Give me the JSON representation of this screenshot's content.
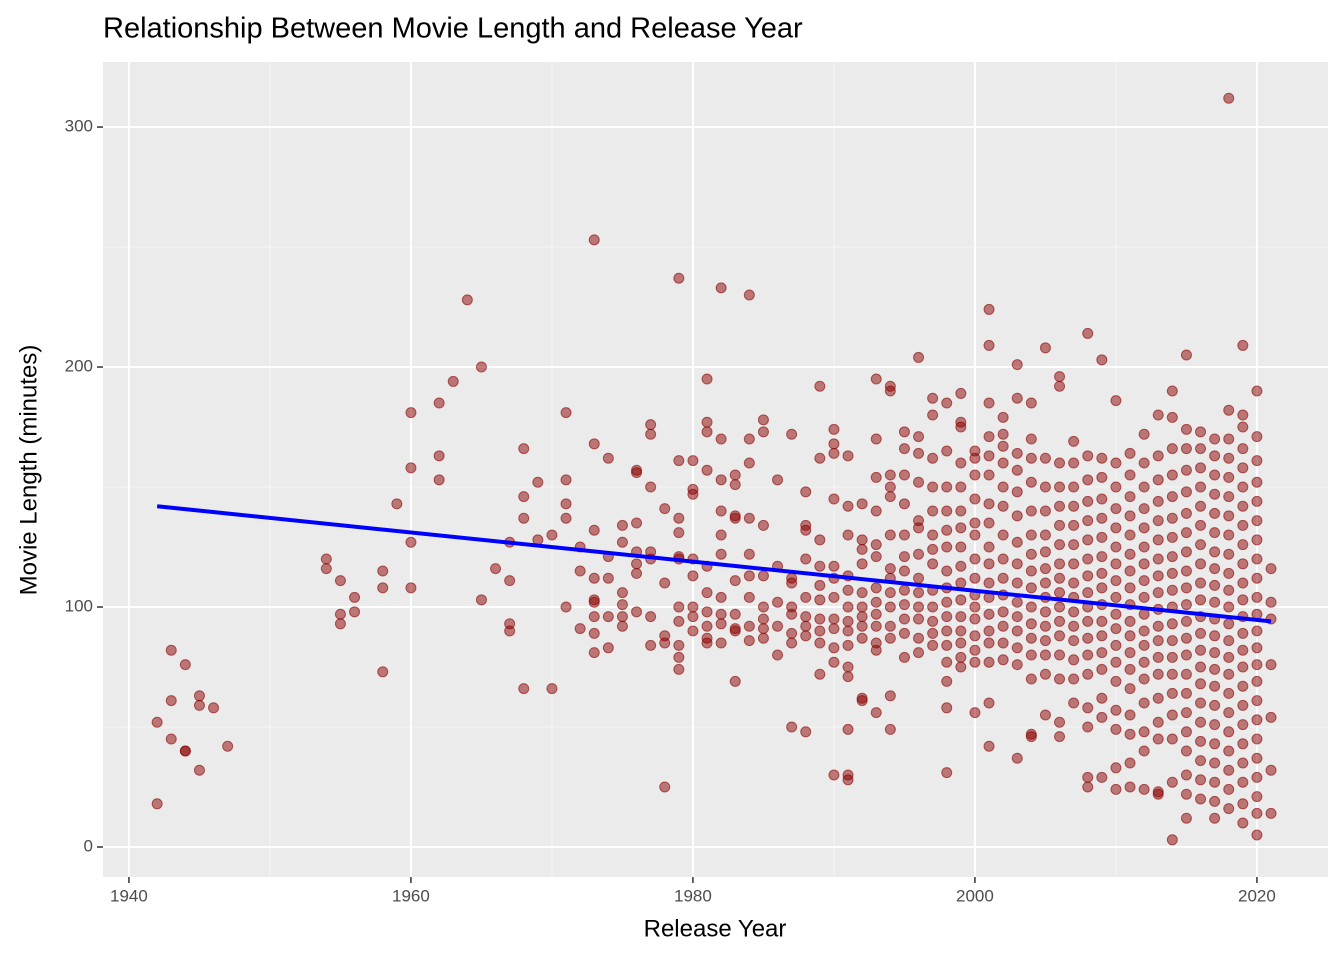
{
  "chart_data": {
    "type": "scatter",
    "title": "Relationship Between Movie Length and Release Year",
    "x_label": "Release Year",
    "y_label": "Movie Length (minutes)",
    "xlim": [
      1938.16,
      2025.04
    ],
    "ylim": [
      -12.5,
      327.1
    ],
    "xticks": [
      1940,
      1960,
      1980,
      2000,
      2020
    ],
    "yticks": [
      0,
      100,
      200,
      300
    ],
    "grid": true,
    "color": "#8b0000",
    "x": [
      1942,
      1942,
      1943,
      1943,
      1943,
      1944,
      1944,
      1944,
      1945,
      1945,
      1945,
      1946,
      1947,
      1954,
      1954,
      1955,
      1955,
      1955,
      1956,
      1956,
      1958,
      1958,
      1958,
      1959,
      1960,
      1960,
      1960,
      1960,
      1962,
      1962,
      1962,
      1963,
      1964,
      1965,
      1965,
      1966,
      1967,
      1967,
      1967,
      1967,
      1968,
      1968,
      1968,
      1968,
      1969,
      1969,
      1970,
      1970,
      1971,
      1971,
      1971,
      1971,
      1971,
      1972,
      1972,
      1972,
      1973,
      1973,
      1973,
      1973,
      1973,
      1973,
      1973,
      1973,
      1973,
      1974,
      1974,
      1974,
      1974,
      1974,
      1975,
      1975,
      1975,
      1975,
      1975,
      1975,
      1976,
      1976,
      1976,
      1976,
      1976,
      1976,
      1976,
      1977,
      1977,
      1977,
      1977,
      1977,
      1977,
      1977,
      1978,
      1978,
      1978,
      1978,
      1978,
      1979,
      1979,
      1979,
      1979,
      1979,
      1979,
      1979,
      1979,
      1979,
      1979,
      1979,
      1980,
      1980,
      1980,
      1980,
      1980,
      1980,
      1980,
      1980,
      1981,
      1981,
      1981,
      1981,
      1981,
      1981,
      1981,
      1981,
      1981,
      1981,
      1982,
      1982,
      1982,
      1982,
      1982,
      1982,
      1982,
      1982,
      1982,
      1982,
      1983,
      1983,
      1983,
      1983,
      1983,
      1983,
      1983,
      1983,
      1983,
      1984,
      1984,
      1984,
      1984,
      1984,
      1984,
      1984,
      1984,
      1984,
      1985,
      1985,
      1985,
      1985,
      1985,
      1985,
      1985,
      1985,
      1986,
      1986,
      1986,
      1986,
      1986,
      1987,
      1987,
      1987,
      1987,
      1987,
      1987,
      1987,
      1987,
      1988,
      1988,
      1988,
      1988,
      1988,
      1988,
      1988,
      1988,
      1988,
      1989,
      1989,
      1989,
      1989,
      1989,
      1989,
      1989,
      1989,
      1989,
      1989,
      1990,
      1990,
      1990,
      1990,
      1990,
      1990,
      1990,
      1990,
      1990,
      1990,
      1990,
      1990,
      1991,
      1991,
      1991,
      1991,
      1991,
      1991,
      1991,
      1991,
      1991,
      1991,
      1991,
      1991,
      1991,
      1991,
      1992,
      1992,
      1992,
      1992,
      1992,
      1992,
      1992,
      1992,
      1992,
      1992,
      1992,
      1993,
      1993,
      1993,
      1993,
      1993,
      1993,
      1993,
      1993,
      1993,
      1993,
      1993,
      1993,
      1993,
      1994,
      1994,
      1994,
      1994,
      1994,
      1994,
      1994,
      1994,
      1994,
      1994,
      1994,
      1994,
      1994,
      1994,
      1995,
      1995,
      1995,
      1995,
      1995,
      1995,
      1995,
      1995,
      1995,
      1995,
      1995,
      1995,
      1996,
      1996,
      1996,
      1996,
      1996,
      1996,
      1996,
      1996,
      1996,
      1996,
      1996,
      1996,
      1996,
      1997,
      1997,
      1997,
      1997,
      1997,
      1997,
      1997,
      1997,
      1997,
      1997,
      1997,
      1997,
      1997,
      1998,
      1998,
      1998,
      1998,
      1998,
      1998,
      1998,
      1998,
      1998,
      1998,
      1998,
      1998,
      1998,
      1998,
      1998,
      1998,
      1999,
      1999,
      1999,
      1999,
      1999,
      1999,
      1999,
      1999,
      1999,
      1999,
      1999,
      1999,
      1999,
      1999,
      1999,
      1999,
      2000,
      2000,
      2000,
      2000,
      2000,
      2000,
      2000,
      2000,
      2000,
      2000,
      2000,
      2000,
      2000,
      2000,
      2000,
      2001,
      2001,
      2001,
      2001,
      2001,
      2001,
      2001,
      2001,
      2001,
      2001,
      2001,
      2001,
      2001,
      2001,
      2001,
      2001,
      2001,
      2001,
      2002,
      2002,
      2002,
      2002,
      2002,
      2002,
      2002,
      2002,
      2002,
      2002,
      2002,
      2002,
      2002,
      2002,
      2003,
      2003,
      2003,
      2003,
      2003,
      2003,
      2003,
      2003,
      2003,
      2003,
      2003,
      2003,
      2003,
      2003,
      2003,
      2004,
      2004,
      2004,
      2004,
      2004,
      2004,
      2004,
      2004,
      2004,
      2004,
      2004,
      2004,
      2004,
      2004,
      2004,
      2004,
      2005,
      2005,
      2005,
      2005,
      2005,
      2005,
      2005,
      2005,
      2005,
      2005,
      2005,
      2005,
      2005,
      2005,
      2005,
      2006,
      2006,
      2006,
      2006,
      2006,
      2006,
      2006,
      2006,
      2006,
      2006,
      2006,
      2006,
      2006,
      2006,
      2006,
      2006,
      2006,
      2007,
      2007,
      2007,
      2007,
      2007,
      2007,
      2007,
      2007,
      2007,
      2007,
      2007,
      2007,
      2007,
      2007,
      2007,
      2008,
      2008,
      2008,
      2008,
      2008,
      2008,
      2008,
      2008,
      2008,
      2008,
      2008,
      2008,
      2008,
      2008,
      2008,
      2008,
      2008,
      2008,
      2009,
      2009,
      2009,
      2009,
      2009,
      2009,
      2009,
      2009,
      2009,
      2009,
      2009,
      2009,
      2009,
      2009,
      2009,
      2009,
      2009,
      2010,
      2010,
      2010,
      2010,
      2010,
      2010,
      2010,
      2010,
      2010,
      2010,
      2010,
      2010,
      2010,
      2010,
      2010,
      2010,
      2010,
      2010,
      2011,
      2011,
      2011,
      2011,
      2011,
      2011,
      2011,
      2011,
      2011,
      2011,
      2011,
      2011,
      2011,
      2011,
      2011,
      2011,
      2011,
      2011,
      2012,
      2012,
      2012,
      2012,
      2012,
      2012,
      2012,
      2012,
      2012,
      2012,
      2012,
      2012,
      2012,
      2012,
      2012,
      2012,
      2012,
      2012,
      2013,
      2013,
      2013,
      2013,
      2013,
      2013,
      2013,
      2013,
      2013,
      2013,
      2013,
      2013,
      2013,
      2013,
      2013,
      2013,
      2013,
      2013,
      2013,
      2014,
      2014,
      2014,
      2014,
      2014,
      2014,
      2014,
      2014,
      2014,
      2014,
      2014,
      2014,
      2014,
      2014,
      2014,
      2014,
      2014,
      2014,
      2014,
      2014,
      2015,
      2015,
      2015,
      2015,
      2015,
      2015,
      2015,
      2015,
      2015,
      2015,
      2015,
      2015,
      2015,
      2015,
      2015,
      2015,
      2015,
      2015,
      2015,
      2015,
      2015,
      2015,
      2016,
      2016,
      2016,
      2016,
      2016,
      2016,
      2016,
      2016,
      2016,
      2016,
      2016,
      2016,
      2016,
      2016,
      2016,
      2016,
      2016,
      2016,
      2016,
      2016,
      2016,
      2017,
      2017,
      2017,
      2017,
      2017,
      2017,
      2017,
      2017,
      2017,
      2017,
      2017,
      2017,
      2017,
      2017,
      2017,
      2017,
      2017,
      2017,
      2017,
      2017,
      2017,
      2017,
      2018,
      2018,
      2018,
      2018,
      2018,
      2018,
      2018,
      2018,
      2018,
      2018,
      2018,
      2018,
      2018,
      2018,
      2018,
      2018,
      2018,
      2018,
      2018,
      2018,
      2018,
      2018,
      2018,
      2019,
      2019,
      2019,
      2019,
      2019,
      2019,
      2019,
      2019,
      2019,
      2019,
      2019,
      2019,
      2019,
      2019,
      2019,
      2019,
      2019,
      2019,
      2019,
      2019,
      2019,
      2019,
      2019,
      2019,
      2020,
      2020,
      2020,
      2020,
      2020,
      2020,
      2020,
      2020,
      2020,
      2020,
      2020,
      2020,
      2020,
      2020,
      2020,
      2020,
      2020,
      2020,
      2020,
      2020,
      2020,
      2020,
      2020,
      2021,
      2021,
      2021,
      2021,
      2021,
      2021,
      2021
    ],
    "values": [
      52,
      18,
      82,
      61,
      45,
      76,
      40,
      40,
      63,
      59,
      32,
      58,
      42,
      120,
      116,
      111,
      97,
      93,
      104,
      98,
      115,
      108,
      73,
      143,
      181,
      158,
      127,
      108,
      185,
      163,
      153,
      194,
      228,
      200,
      103,
      116,
      127,
      111,
      93,
      90,
      166,
      146,
      137,
      66,
      152,
      128,
      130,
      66,
      181,
      153,
      143,
      137,
      100,
      125,
      115,
      91,
      253,
      168,
      132,
      112,
      103,
      102,
      96,
      89,
      81,
      162,
      121,
      112,
      96,
      83,
      134,
      127,
      106,
      101,
      96,
      92,
      157,
      156,
      135,
      123,
      118,
      114,
      98,
      176,
      172,
      150,
      123,
      120,
      96,
      84,
      141,
      110,
      88,
      85,
      25,
      237,
      161,
      137,
      131,
      121,
      120,
      100,
      94,
      84,
      79,
      74,
      161,
      149,
      147,
      120,
      113,
      100,
      96,
      90,
      195,
      177,
      173,
      157,
      117,
      106,
      98,
      92,
      87,
      85,
      233,
      170,
      153,
      140,
      130,
      122,
      104,
      97,
      93,
      85,
      155,
      151,
      138,
      137,
      111,
      97,
      91,
      90,
      69,
      230,
      170,
      160,
      137,
      122,
      113,
      104,
      92,
      86,
      178,
      173,
      134,
      113,
      100,
      95,
      91,
      87,
      153,
      117,
      102,
      92,
      80,
      172,
      112,
      110,
      100,
      97,
      89,
      85,
      50,
      148,
      134,
      132,
      120,
      104,
      96,
      92,
      88,
      48,
      192,
      162,
      128,
      117,
      109,
      103,
      95,
      90,
      85,
      72,
      174,
      168,
      164,
      145,
      117,
      112,
      104,
      95,
      91,
      83,
      77,
      30,
      163,
      142,
      130,
      113,
      107,
      100,
      94,
      90,
      84,
      75,
      71,
      49,
      30,
      28,
      143,
      128,
      124,
      118,
      106,
      100,
      96,
      92,
      87,
      62,
      61,
      195,
      170,
      154,
      140,
      126,
      121,
      108,
      102,
      97,
      92,
      85,
      82,
      56,
      192,
      190,
      155,
      150,
      146,
      130,
      116,
      112,
      106,
      100,
      92,
      87,
      63,
      49,
      173,
      166,
      155,
      143,
      130,
      121,
      115,
      107,
      101,
      95,
      89,
      79,
      204,
      171,
      164,
      152,
      136,
      133,
      122,
      112,
      106,
      100,
      95,
      87,
      81,
      187,
      180,
      162,
      150,
      140,
      130,
      124,
      118,
      107,
      100,
      94,
      89,
      84,
      185,
      165,
      150,
      140,
      132,
      125,
      115,
      108,
      102,
      96,
      90,
      84,
      77,
      69,
      58,
      31,
      189,
      177,
      175,
      160,
      150,
      140,
      133,
      125,
      117,
      110,
      103,
      96,
      90,
      85,
      79,
      75,
      165,
      162,
      155,
      145,
      135,
      130,
      120,
      112,
      105,
      100,
      95,
      88,
      82,
      77,
      56,
      224,
      209,
      185,
      171,
      163,
      155,
      143,
      135,
      125,
      118,
      110,
      104,
      97,
      90,
      85,
      77,
      60,
      42,
      179,
      172,
      167,
      160,
      150,
      142,
      130,
      120,
      112,
      105,
      98,
      92,
      85,
      78,
      201,
      187,
      164,
      157,
      148,
      138,
      127,
      118,
      110,
      102,
      96,
      90,
      83,
      76,
      37,
      185,
      170,
      162,
      152,
      140,
      130,
      122,
      115,
      108,
      100,
      93,
      87,
      80,
      70,
      47,
      46,
      208,
      162,
      150,
      140,
      130,
      123,
      116,
      110,
      104,
      98,
      92,
      86,
      80,
      72,
      55,
      196,
      192,
      160,
      150,
      142,
      134,
      126,
      118,
      112,
      106,
      100,
      94,
      88,
      80,
      70,
      52,
      46,
      169,
      160,
      150,
      142,
      134,
      126,
      118,
      110,
      104,
      98,
      92,
      86,
      78,
      70,
      60,
      214,
      163,
      153,
      144,
      136,
      128,
      120,
      113,
      106,
      100,
      94,
      87,
      80,
      72,
      58,
      50,
      29,
      25,
      203,
      162,
      154,
      145,
      137,
      129,
      121,
      114,
      108,
      101,
      94,
      88,
      81,
      74,
      62,
      54,
      29,
      186,
      160,
      150,
      141,
      133,
      125,
      118,
      111,
      104,
      97,
      91,
      84,
      77,
      69,
      57,
      49,
      33,
      24,
      164,
      155,
      146,
      138,
      130,
      122,
      115,
      108,
      101,
      94,
      88,
      81,
      74,
      66,
      55,
      47,
      35,
      25,
      172,
      160,
      150,
      141,
      133,
      125,
      118,
      111,
      104,
      97,
      90,
      84,
      77,
      70,
      60,
      48,
      40,
      24,
      180,
      163,
      153,
      144,
      136,
      128,
      120,
      113,
      106,
      99,
      92,
      86,
      79,
      72,
      62,
      52,
      45,
      23,
      22,
      190,
      179,
      166,
      155,
      146,
      137,
      129,
      121,
      114,
      107,
      100,
      93,
      86,
      79,
      72,
      64,
      55,
      45,
      27,
      3,
      205,
      174,
      166,
      157,
      148,
      139,
      131,
      123,
      115,
      108,
      101,
      94,
      87,
      80,
      72,
      64,
      56,
      48,
      40,
      30,
      22,
      12,
      173,
      166,
      158,
      150,
      142,
      134,
      126,
      118,
      110,
      103,
      96,
      89,
      82,
      75,
      68,
      60,
      52,
      44,
      36,
      28,
      20,
      170,
      163,
      155,
      147,
      139,
      131,
      123,
      116,
      109,
      102,
      95,
      88,
      81,
      74,
      67,
      59,
      51,
      43,
      35,
      27,
      19,
      12,
      312,
      182,
      170,
      162,
      154,
      146,
      138,
      130,
      122,
      114,
      107,
      100,
      93,
      86,
      79,
      72,
      64,
      56,
      48,
      40,
      32,
      24,
      16,
      209,
      180,
      175,
      166,
      158,
      150,
      142,
      134,
      126,
      118,
      110,
      103,
      96,
      89,
      82,
      75,
      67,
      59,
      51,
      43,
      35,
      27,
      18,
      10,
      190,
      171,
      161,
      152,
      144,
      136,
      128,
      120,
      112,
      104,
      97,
      90,
      83,
      76,
      69,
      61,
      53,
      45,
      37,
      29,
      21,
      14,
      5,
      116,
      102,
      95,
      76,
      54,
      32,
      14
    ],
    "trend": {
      "x": [
        1942,
        2021
      ],
      "values": [
        142,
        94
      ],
      "color": "#0000ff"
    }
  }
}
